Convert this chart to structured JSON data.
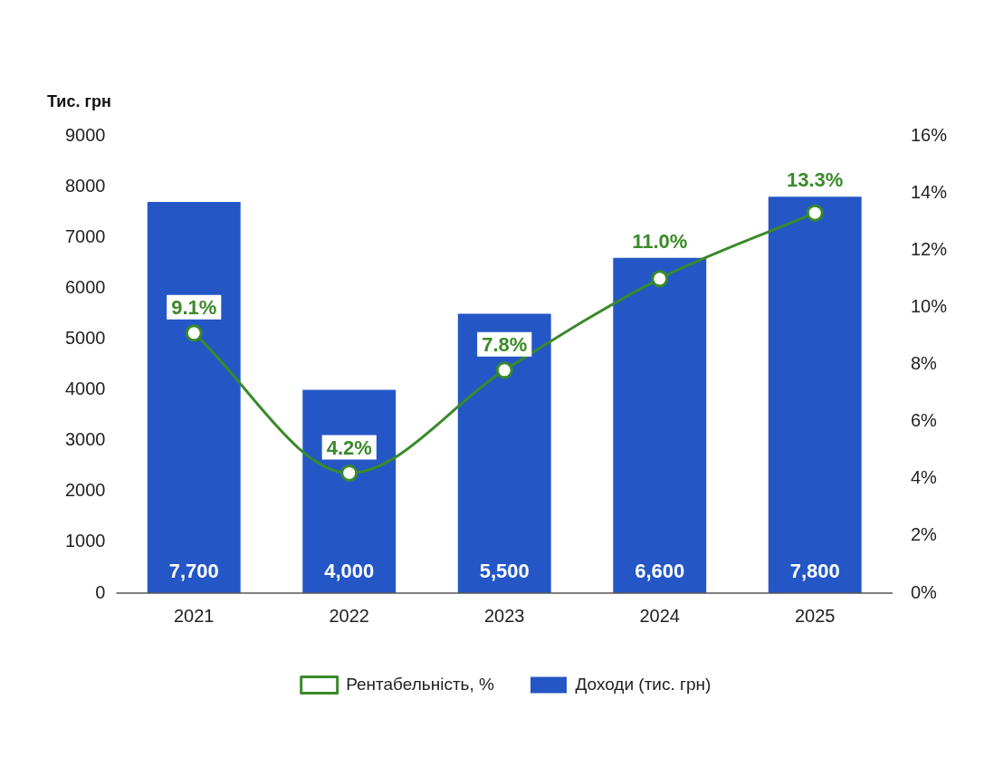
{
  "chart_data": {
    "type": "bar",
    "ylabel": "Тис. грн",
    "categories": [
      "2021",
      "2022",
      "2023",
      "2024",
      "2025"
    ],
    "series": [
      {
        "name": "Доходи (тис. грн)",
        "color": "#2457c5",
        "values": [
          7700,
          4000,
          5500,
          6600,
          7800
        ],
        "value_labels": [
          "7,700",
          "4,000",
          "5,500",
          "6,600",
          "7,800"
        ]
      },
      {
        "name": "Рентабельність, %",
        "type": "line",
        "axis": "y2",
        "color": "#3a8a2a",
        "marker": "circle",
        "values": [
          9.1,
          4.2,
          7.8,
          11.0,
          13.3
        ],
        "value_labels": [
          "9.1%",
          "4.2%",
          "7.8%",
          "11.0%",
          "13.3%"
        ]
      }
    ],
    "ylim": [
      0,
      9000
    ],
    "yticks": [
      0,
      1000,
      2000,
      3000,
      4000,
      5000,
      6000,
      7000,
      8000,
      9000
    ],
    "y2lim": [
      0,
      16
    ],
    "y2ticks": [
      {
        "value": 0,
        "label": "0%"
      },
      {
        "value": 2,
        "label": "2%"
      },
      {
        "value": 4,
        "label": "4%"
      },
      {
        "value": 6,
        "label": "6%"
      },
      {
        "value": 8,
        "label": "8%"
      },
      {
        "value": 10,
        "label": "10%"
      },
      {
        "value": 12,
        "label": "12%"
      },
      {
        "value": 14,
        "label": "14%"
      },
      {
        "value": 16,
        "label": "16%"
      }
    ],
    "grid": false,
    "legend": "bottom"
  }
}
